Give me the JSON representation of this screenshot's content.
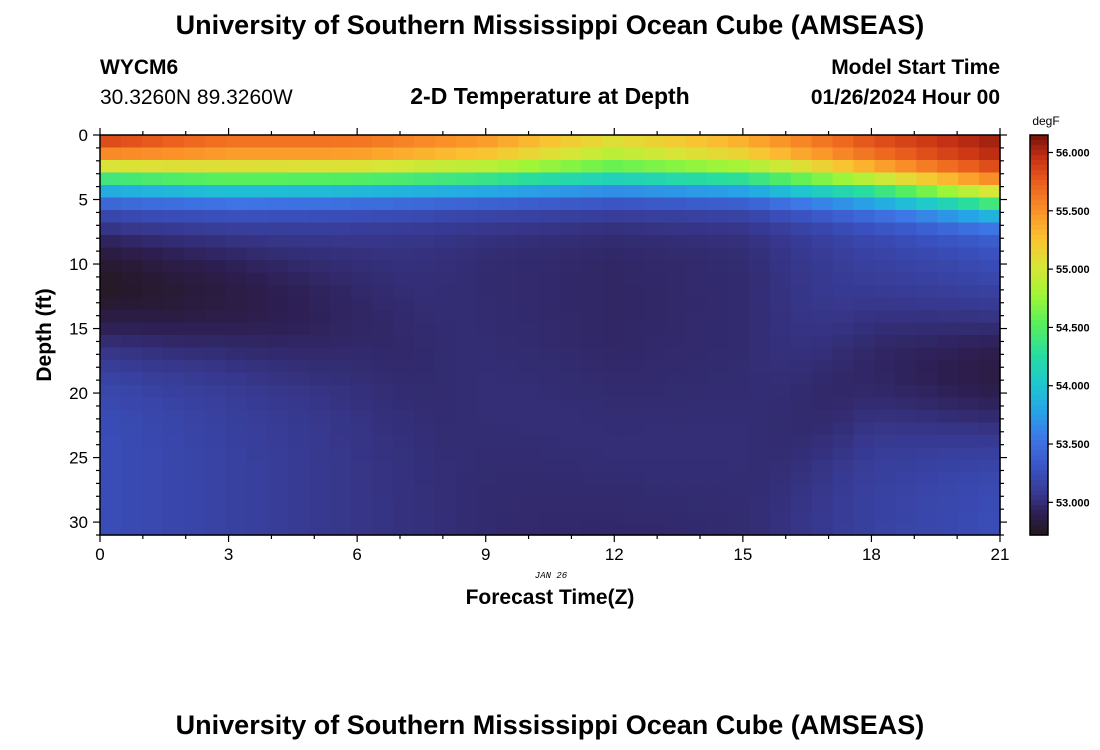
{
  "header": {
    "title": "University of Southern Mississippi Ocean Cube (AMSEAS)",
    "station_id": "WYCM6",
    "coordinates": "30.3260N  89.3260W",
    "plot_title": "2-D Temperature at Depth",
    "model_start_label": "Model Start Time",
    "model_start_value": "01/26/2024 Hour 00"
  },
  "footer": {
    "title": "University of Southern Mississippi Ocean Cube (AMSEAS)"
  },
  "chart_data": {
    "type": "heatmap",
    "xlabel": "Forecast Time(Z)",
    "ylabel": "Depth (ft)",
    "date_label": "JAN 26",
    "x_ticks": [
      "0",
      "3",
      "6",
      "9",
      "12",
      "15",
      "18",
      "21"
    ],
    "y_ticks": [
      "0",
      "5",
      "10",
      "15",
      "20",
      "25",
      "30"
    ],
    "xlim": [
      0,
      21
    ],
    "ylim": [
      0,
      31
    ],
    "y_inverted": true,
    "colorbar": {
      "unit": "degF",
      "ticks": [
        "53.000",
        "53.500",
        "54.000",
        "54.500",
        "55.000",
        "55.500",
        "56.000"
      ],
      "range": [
        52.72,
        56.15
      ],
      "colormap": "turbo"
    },
    "depth_profiles": [
      {
        "time": 0,
        "t_surface": 56.1,
        "transition_depth_ft": 3.0,
        "t_deep_min": 52.75,
        "cold_layer_depth_ft": 11.5,
        "t_bottom": 53.25
      },
      {
        "time": 3,
        "t_surface": 55.8,
        "transition_depth_ft": 3.5,
        "t_deep_min": 52.85,
        "cold_layer_depth_ft": 12.5,
        "t_bottom": 53.15
      },
      {
        "time": 6,
        "t_surface": 55.8,
        "transition_depth_ft": 3.5,
        "t_deep_min": 52.95,
        "cold_layer_depth_ft": 14.0,
        "t_bottom": 53.05
      },
      {
        "time": 9,
        "t_surface": 55.6,
        "transition_depth_ft": 3.5,
        "t_deep_min": 53.0,
        "cold_layer_depth_ft": 20.0,
        "t_bottom": 52.98
      },
      {
        "time": 12,
        "t_surface": 55.2,
        "transition_depth_ft": 3.5,
        "t_deep_min": 53.0,
        "cold_layer_depth_ft": 24.0,
        "t_bottom": 52.95
      },
      {
        "time": 15,
        "t_surface": 55.5,
        "transition_depth_ft": 3.5,
        "t_deep_min": 53.0,
        "cold_layer_depth_ft": 24.0,
        "t_bottom": 52.98
      },
      {
        "time": 18,
        "t_surface": 55.9,
        "transition_depth_ft": 4.0,
        "t_deep_min": 52.95,
        "cold_layer_depth_ft": 18.0,
        "t_bottom": 53.15
      },
      {
        "time": 21,
        "t_surface": 56.1,
        "transition_depth_ft": 5.0,
        "t_deep_min": 52.85,
        "cold_layer_depth_ft": 18.5,
        "t_bottom": 53.25
      }
    ],
    "grid": false,
    "legend": "colorbar-right"
  }
}
